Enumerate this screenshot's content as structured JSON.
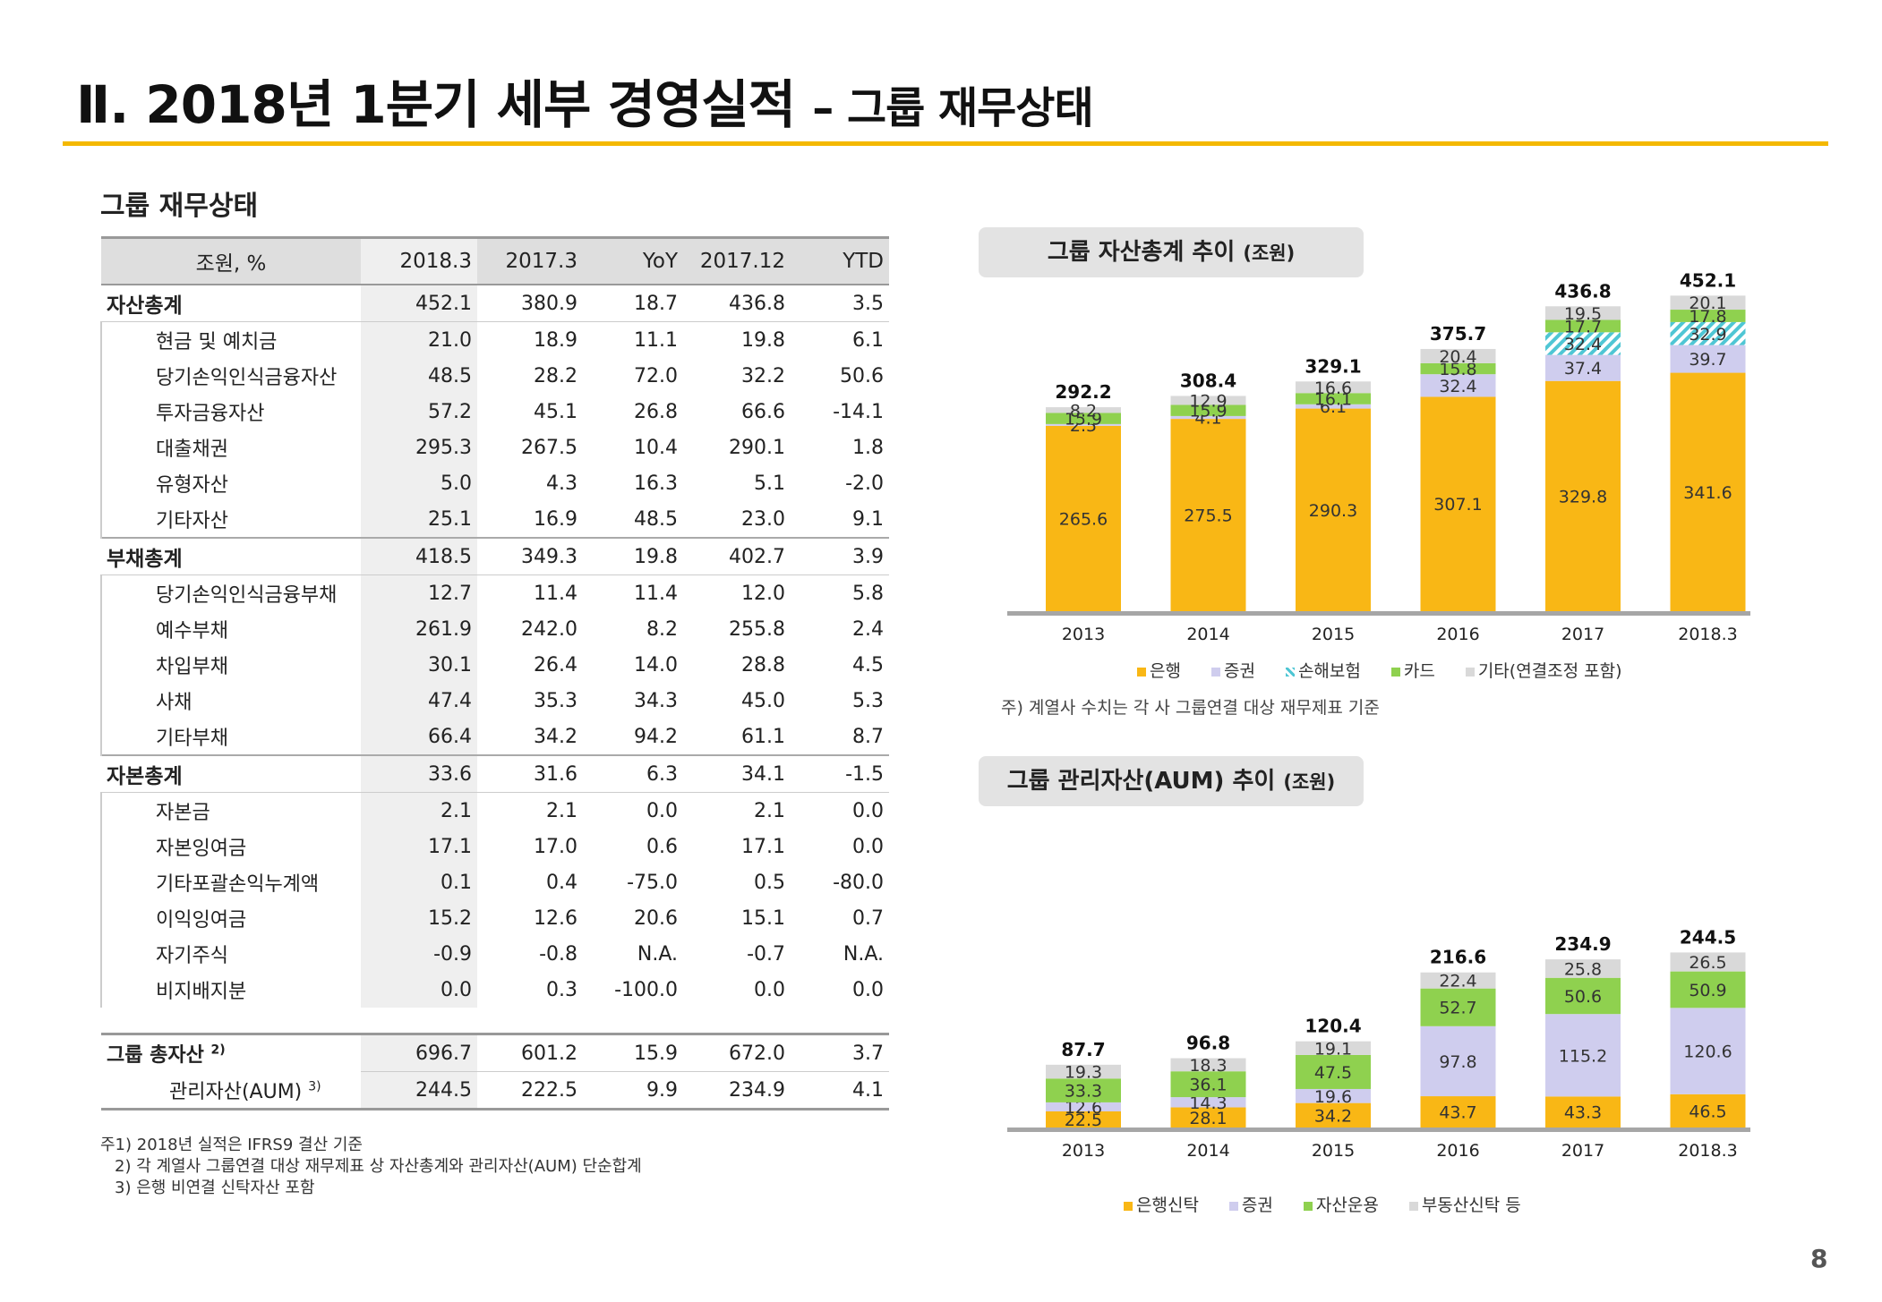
{
  "header": {
    "title": "Ⅱ. 2018년 1분기 세부 경영실적",
    "dash": "–",
    "subtitle": "그룹 재무상태"
  },
  "section_title": "그룹 재무상태",
  "table": {
    "columns": [
      "조원, %",
      "2018.3",
      "2017.3",
      "YoY",
      "2017.12",
      "YTD"
    ],
    "groups": [
      {
        "label": "자산총계",
        "values": [
          "452.1",
          "380.9",
          "18.7",
          "436.8",
          "3.5"
        ],
        "rows": [
          {
            "label": "현금 및 예치금",
            "values": [
              "21.0",
              "18.9",
              "11.1",
              "19.8",
              "6.1"
            ]
          },
          {
            "label": "당기손익인식금융자산",
            "values": [
              "48.5",
              "28.2",
              "72.0",
              "32.2",
              "50.6"
            ]
          },
          {
            "label": "투자금융자산",
            "values": [
              "57.2",
              "45.1",
              "26.8",
              "66.6",
              "-14.1"
            ]
          },
          {
            "label": "대출채권",
            "values": [
              "295.3",
              "267.5",
              "10.4",
              "290.1",
              "1.8"
            ]
          },
          {
            "label": "유형자산",
            "values": [
              "5.0",
              "4.3",
              "16.3",
              "5.1",
              "-2.0"
            ]
          },
          {
            "label": "기타자산",
            "values": [
              "25.1",
              "16.9",
              "48.5",
              "23.0",
              "9.1"
            ]
          }
        ]
      },
      {
        "label": "부채총계",
        "values": [
          "418.5",
          "349.3",
          "19.8",
          "402.7",
          "3.9"
        ],
        "rows": [
          {
            "label": "당기손익인식금융부채",
            "values": [
              "12.7",
              "11.4",
              "11.4",
              "12.0",
              "5.8"
            ]
          },
          {
            "label": "예수부채",
            "values": [
              "261.9",
              "242.0",
              "8.2",
              "255.8",
              "2.4"
            ]
          },
          {
            "label": "차입부채",
            "values": [
              "30.1",
              "26.4",
              "14.0",
              "28.8",
              "4.5"
            ]
          },
          {
            "label": "사채",
            "values": [
              "47.4",
              "35.3",
              "34.3",
              "45.0",
              "5.3"
            ]
          },
          {
            "label": "기타부채",
            "values": [
              "66.4",
              "34.2",
              "94.2",
              "61.1",
              "8.7"
            ]
          }
        ]
      },
      {
        "label": "자본총계",
        "values": [
          "33.6",
          "31.6",
          "6.3",
          "34.1",
          "-1.5"
        ],
        "rows": [
          {
            "label": "자본금",
            "values": [
              "2.1",
              "2.1",
              "0.0",
              "2.1",
              "0.0"
            ]
          },
          {
            "label": "자본잉여금",
            "values": [
              "17.1",
              "17.0",
              "0.6",
              "17.1",
              "0.0"
            ]
          },
          {
            "label": "기타포괄손익누계액",
            "values": [
              "0.1",
              "0.4",
              "-75.0",
              "0.5",
              "-80.0"
            ]
          },
          {
            "label": "이익잉여금",
            "values": [
              "15.2",
              "12.6",
              "20.6",
              "15.1",
              "0.7"
            ]
          },
          {
            "label": "자기주식",
            "values": [
              "-0.9",
              "-0.8",
              "N.A.",
              "-0.7",
              "N.A."
            ]
          },
          {
            "label": "비지배지분",
            "values": [
              "0.0",
              "0.3",
              "-100.0",
              "0.0",
              "0.0"
            ]
          }
        ]
      }
    ],
    "totals": [
      {
        "label": "그룹 총자산",
        "sup": "2)",
        "values": [
          "696.7",
          "601.2",
          "15.9",
          "672.0",
          "3.7"
        ]
      },
      {
        "label": "관리자산(AUM)",
        "sup": "3)",
        "values": [
          "244.5",
          "222.5",
          "9.9",
          "234.9",
          "4.1"
        ]
      }
    ]
  },
  "notes": [
    "주1) 2018년 실적은 IFRS9 결산 기준",
    "2) 각 계열사 그룹연결 대상 재무제표 상 자산총계와 관리자산(AUM) 단순합계",
    "3) 은행 비연결 신탁자산 포함"
  ],
  "chart_data": [
    {
      "type": "bar",
      "stacked": true,
      "title": "그룹 자산총계 추이",
      "title_unit": "(조원)",
      "categories": [
        "2013",
        "2014",
        "2015",
        "2016",
        "2017",
        "2018.3"
      ],
      "totals": [
        "292.2",
        "308.4",
        "329.1",
        "375.7",
        "436.8",
        "452.1"
      ],
      "series": [
        {
          "name": "은행",
          "color": "#f9b715",
          "values": [
            265.6,
            275.5,
            290.3,
            307.1,
            329.8,
            341.6
          ]
        },
        {
          "name": "증권",
          "color": "#cfcdee",
          "values": [
            2.5,
            4.1,
            6.1,
            32.4,
            37.4,
            39.7
          ]
        },
        {
          "name": "손해보험",
          "color": "#7fd6dc",
          "hatched": true,
          "values": [
            null,
            null,
            null,
            null,
            32.4,
            32.9
          ]
        },
        {
          "name": "카드",
          "color": "#8fd14f",
          "values": [
            15.9,
            15.9,
            16.1,
            15.8,
            17.7,
            17.8
          ]
        },
        {
          "name": "기타(연결조정 포함)",
          "color": "#d9d9d9",
          "values": [
            8.2,
            12.9,
            16.6,
            20.4,
            19.5,
            20.1
          ]
        }
      ],
      "footnote": "주) 계열사 수치는 각 사 그룹연결 대상 재무제표 기준"
    },
    {
      "type": "bar",
      "stacked": true,
      "title": "그룹 관리자산(AUM) 추이",
      "title_unit": "(조원)",
      "categories": [
        "2013",
        "2014",
        "2015",
        "2016",
        "2017",
        "2018.3"
      ],
      "totals": [
        "87.7",
        "96.8",
        "120.4",
        "216.6",
        "234.9",
        "244.5"
      ],
      "series": [
        {
          "name": "은행신탁",
          "color": "#f9b715",
          "values": [
            22.5,
            28.1,
            34.2,
            43.7,
            43.3,
            46.5
          ]
        },
        {
          "name": "증권",
          "color": "#cfcdee",
          "values": [
            12.6,
            14.3,
            19.6,
            97.8,
            115.2,
            120.6
          ]
        },
        {
          "name": "자산운용",
          "color": "#8fd14f",
          "values": [
            33.3,
            36.1,
            47.5,
            52.7,
            50.6,
            50.9
          ]
        },
        {
          "name": "부동산신탁 등",
          "color": "#d9d9d9",
          "values": [
            19.3,
            18.3,
            19.1,
            22.4,
            25.8,
            26.5
          ]
        }
      ]
    }
  ],
  "page_number": "8"
}
